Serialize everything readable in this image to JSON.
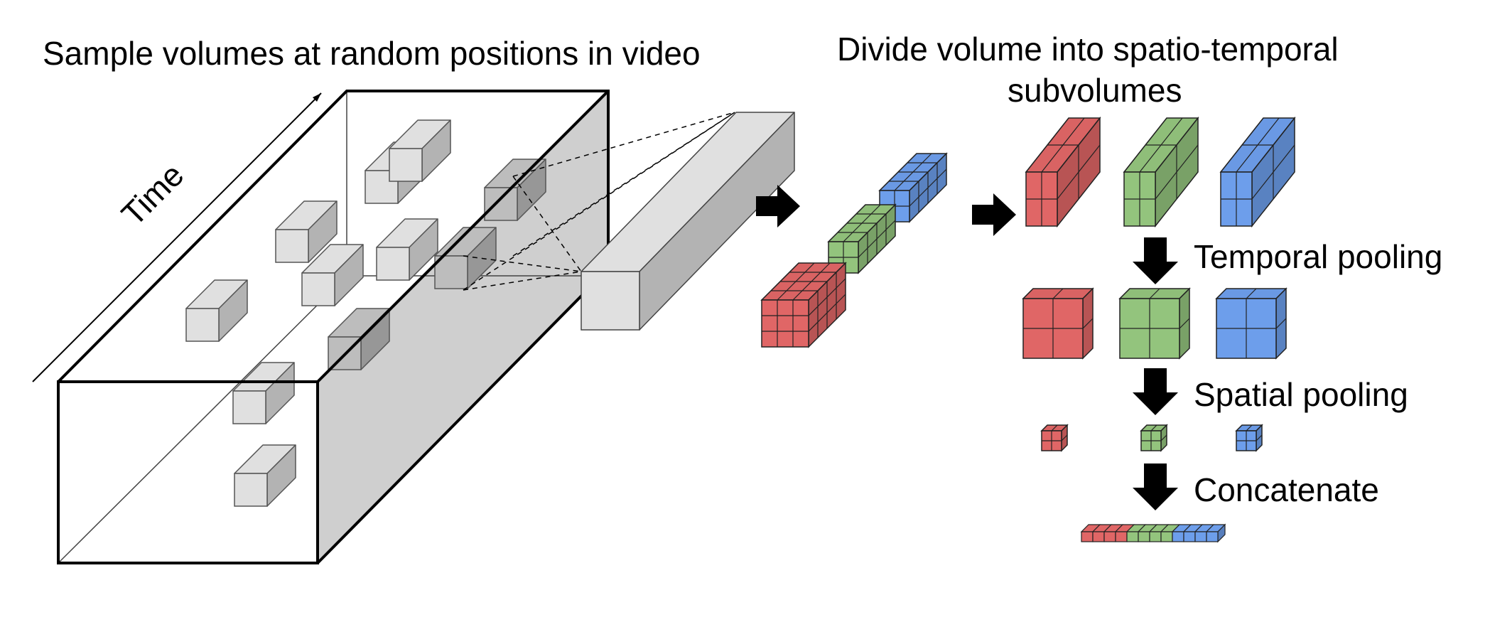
{
  "labels": {
    "sample": "Sample volumes at random positions in video",
    "time": "Time",
    "divide_line1": "Divide volume into spatio-temporal",
    "divide_line2": "subvolumes",
    "temporal": "Temporal pooling",
    "spatial": "Spatial pooling",
    "concat": "Concatenate"
  },
  "colors": {
    "red": "#e06666",
    "green": "#93c47d",
    "blue": "#6d9eeb",
    "gray": "#e0e0e0",
    "gray_dark": "#9a9a9a"
  }
}
